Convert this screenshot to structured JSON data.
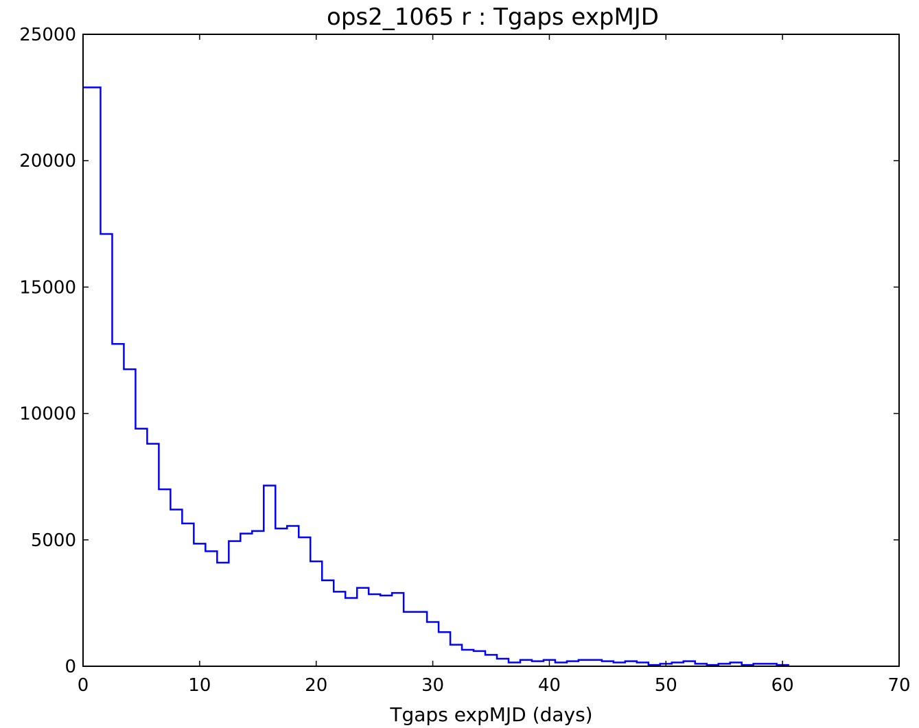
{
  "chart_data": {
    "type": "histogram",
    "title": "ops2_1065  r : Tgaps expMJD",
    "xlabel": "Tgaps expMJD (days)",
    "ylabel": "",
    "xlim": [
      0,
      70
    ],
    "ylim": [
      0,
      25000
    ],
    "xticks": [
      0,
      10,
      20,
      30,
      40,
      50,
      60,
      70
    ],
    "yticks": [
      0,
      5000,
      10000,
      15000,
      20000,
      25000
    ],
    "grid": false,
    "line_color": "#0000ff",
    "bin_edges": [
      0.0,
      1.5,
      2.5,
      3.5,
      4.5,
      5.5,
      6.5,
      7.5,
      8.5,
      9.5,
      10.5,
      11.5,
      12.5,
      13.5,
      14.5,
      15.5,
      16.5,
      17.5,
      18.5,
      19.5,
      20.5,
      21.5,
      22.5,
      23.5,
      24.5,
      25.5,
      26.5,
      27.5,
      28.5,
      29.5,
      30.5,
      31.5,
      32.5,
      33.5,
      34.5,
      35.5,
      36.5,
      37.5,
      38.5,
      39.5,
      40.5,
      41.5,
      42.5,
      43.5,
      44.5,
      45.5,
      46.5,
      47.5,
      48.5,
      49.5,
      50.5,
      51.5,
      52.5,
      53.5,
      54.5,
      55.5,
      56.5,
      57.5,
      58.5,
      59.5,
      60.5
    ],
    "counts": [
      22900,
      17100,
      12750,
      11750,
      9400,
      8800,
      7000,
      6200,
      5650,
      4850,
      4550,
      4100,
      4950,
      5250,
      5350,
      7150,
      5450,
      5550,
      5100,
      4150,
      3400,
      2950,
      2700,
      3100,
      2850,
      2800,
      2900,
      2150,
      2150,
      1750,
      1350,
      850,
      650,
      600,
      450,
      300,
      150,
      250,
      200,
      250,
      150,
      200,
      250,
      250,
      200,
      150,
      200,
      150,
      50,
      100,
      150,
      200,
      100,
      50,
      100,
      150,
      50,
      100,
      100,
      50
    ]
  }
}
